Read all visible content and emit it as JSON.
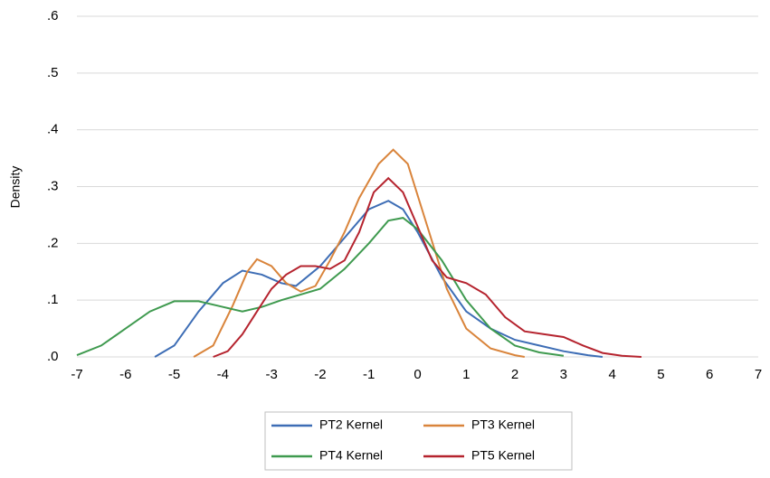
{
  "chart_data": {
    "type": "line",
    "y_label": "Density",
    "xlim": [
      -7,
      7
    ],
    "xticks": [
      -7,
      -6,
      -5,
      -4,
      -3,
      -2,
      -1,
      0,
      1,
      2,
      3,
      4,
      5,
      6,
      7
    ],
    "ylim": [
      0,
      0.6
    ],
    "yticks": [
      {
        "value": 0,
        "label": ".0"
      },
      {
        "value": 0.1,
        "label": ".1"
      },
      {
        "value": 0.2,
        "label": ".2"
      },
      {
        "value": 0.3,
        "label": ".3"
      },
      {
        "value": 0.4,
        "label": ".4"
      },
      {
        "value": 0.5,
        "label": ".5"
      },
      {
        "value": 0.6,
        "label": ".6"
      }
    ],
    "grid": true,
    "series": [
      {
        "name": "PT2 Kernel",
        "color": "#3d6db5",
        "x": [
          -5.4,
          -5,
          -4.5,
          -4,
          -3.6,
          -3.2,
          -2.8,
          -2.5,
          -2,
          -1.5,
          -1,
          -0.6,
          -0.3,
          0,
          0.5,
          1,
          1.5,
          2,
          2.5,
          3,
          3.5,
          3.8
        ],
        "values": [
          0,
          0.02,
          0.08,
          0.13,
          0.152,
          0.145,
          0.13,
          0.125,
          0.16,
          0.21,
          0.26,
          0.275,
          0.26,
          0.22,
          0.14,
          0.08,
          0.05,
          0.03,
          0.02,
          0.01,
          0.003,
          0
        ]
      },
      {
        "name": "PT3 Kernel",
        "color": "#d9843b",
        "x": [
          -4.6,
          -4.2,
          -3.8,
          -3.5,
          -3.3,
          -3,
          -2.7,
          -2.4,
          -2.1,
          -1.8,
          -1.5,
          -1.2,
          -0.8,
          -0.5,
          -0.2,
          0.2,
          0.6,
          1,
          1.5,
          2,
          2.2
        ],
        "values": [
          0,
          0.02,
          0.09,
          0.15,
          0.172,
          0.16,
          0.13,
          0.115,
          0.125,
          0.17,
          0.22,
          0.28,
          0.34,
          0.365,
          0.34,
          0.23,
          0.12,
          0.05,
          0.015,
          0.003,
          0
        ]
      },
      {
        "name": "PT4 Kernel",
        "color": "#3f9a4f",
        "x": [
          -7,
          -6.5,
          -6,
          -5.5,
          -5,
          -4.5,
          -4,
          -3.6,
          -3.2,
          -2.8,
          -2.4,
          -2,
          -1.5,
          -1,
          -0.6,
          -0.3,
          0,
          0.5,
          1,
          1.5,
          2,
          2.5,
          3
        ],
        "values": [
          0.003,
          0.02,
          0.05,
          0.08,
          0.098,
          0.098,
          0.088,
          0.08,
          0.088,
          0.1,
          0.11,
          0.12,
          0.155,
          0.2,
          0.24,
          0.245,
          0.225,
          0.17,
          0.1,
          0.05,
          0.02,
          0.008,
          0.002
        ]
      },
      {
        "name": "PT5 Kernel",
        "color": "#b5232e",
        "x": [
          -4.2,
          -3.9,
          -3.6,
          -3.3,
          -3,
          -2.7,
          -2.4,
          -2.1,
          -1.8,
          -1.5,
          -1.2,
          -0.9,
          -0.6,
          -0.3,
          0,
          0.3,
          0.6,
          1,
          1.4,
          1.8,
          2.2,
          2.6,
          3,
          3.4,
          3.8,
          4.2,
          4.6
        ],
        "values": [
          0,
          0.01,
          0.04,
          0.08,
          0.12,
          0.145,
          0.16,
          0.16,
          0.155,
          0.17,
          0.22,
          0.29,
          0.315,
          0.29,
          0.23,
          0.17,
          0.14,
          0.13,
          0.11,
          0.07,
          0.045,
          0.04,
          0.035,
          0.02,
          0.007,
          0.002,
          0
        ]
      }
    ]
  }
}
